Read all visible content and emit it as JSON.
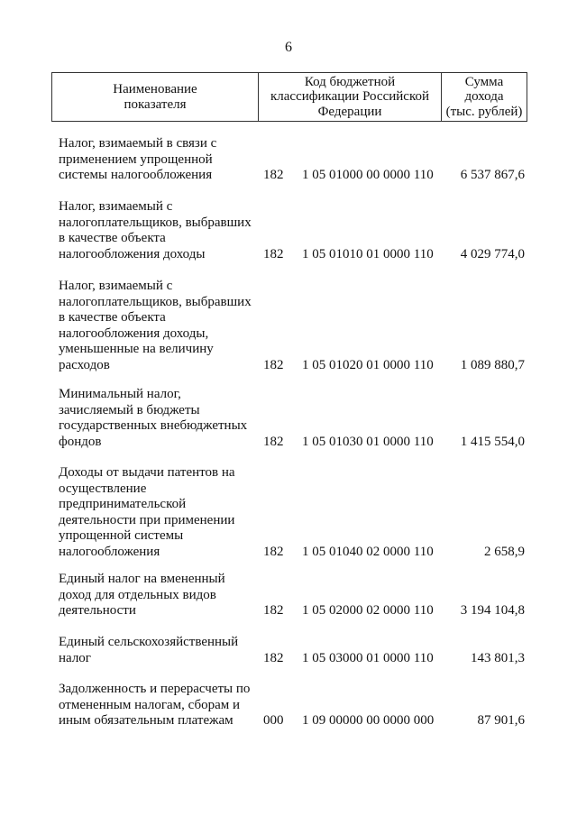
{
  "page_number": "6",
  "header": {
    "name": "Наименование\nпоказателя",
    "code": "Код бюджетной\nклассификации Российской\nФедерации",
    "amount": "Сумма\nдохода\n(тыс. рублей)"
  },
  "rows": [
    {
      "name": "Налог, взимаемый в связи с\nприменением упрощенной\nсистемы налогообложения",
      "admin": "182",
      "code": "1 05 01000 00 0000 110",
      "amount": "6 537 867,6"
    },
    {
      "name": "Налог, взимаемый с\nналогоплательщиков, выбравших\nв качестве объекта\nналогообложения доходы",
      "admin": "182",
      "code": "1 05 01010 01 0000 110",
      "amount": "4 029 774,0"
    },
    {
      "name": "Налог, взимаемый с\nналогоплательщиков, выбравших\nв качестве объекта\nналогообложения доходы,\nуменьшенные на величину\nрасходов",
      "admin": "182",
      "code": "1 05 01020 01 0000 110",
      "amount": "1 089 880,7"
    },
    {
      "name": "Минимальный налог,\nзачисляемый в бюджеты\nгосударственных внебюджетных\nфондов",
      "admin": "182",
      "code": "1 05 01030 01 0000 110",
      "amount": "1 415 554,0"
    },
    {
      "name": "Доходы от выдачи патентов на\nосуществление\nпредпринимательской\nдеятельности при применении\nупрощенной системы\nналогообложения",
      "admin": "182",
      "code": "1 05 01040 02 0000 110",
      "amount": "2 658,9"
    },
    {
      "name": "Единый налог на вмененный\nдоход для отдельных видов\nдеятельности",
      "admin": "182",
      "code": "1 05 02000 02 0000 110",
      "amount": "3 194 104,8"
    },
    {
      "name": "Единый сельскохозяйственный\nналог",
      "admin": "182",
      "code": "1 05 03000 01 0000 110",
      "amount": "143 801,3"
    },
    {
      "name": "Задолженность и перерасчеты по\nотмененным налогам, сборам и\nиным обязательным платежам",
      "admin": "000",
      "code": "1 09 00000 00 0000 000",
      "amount": "87 901,6"
    }
  ]
}
